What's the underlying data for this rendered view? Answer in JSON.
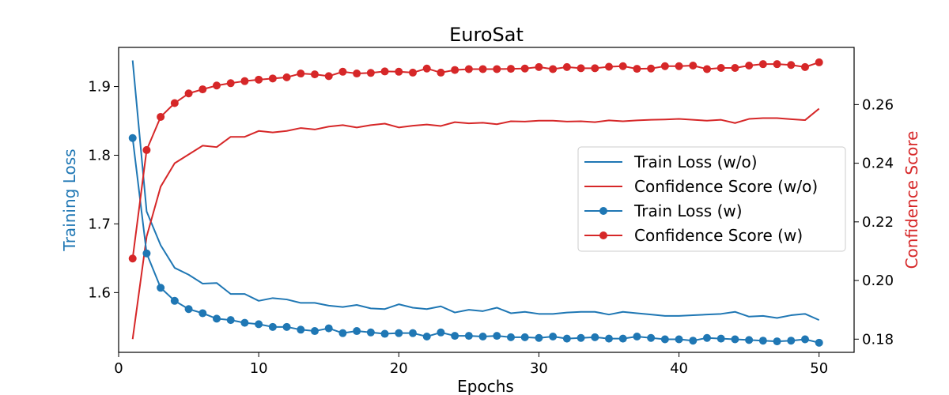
{
  "chart_data": {
    "type": "line",
    "title": "EuroSat",
    "xlabel": "Epochs",
    "ylabel_left": "Training Loss",
    "ylabel_right": "Confidence Score",
    "xlim": [
      0,
      52.5
    ],
    "ylim_left": [
      1.513,
      1.957
    ],
    "ylim_right": [
      0.1755,
      0.2795
    ],
    "x_ticks": [
      0,
      10,
      20,
      30,
      40,
      50
    ],
    "y_ticks_left": [
      1.6,
      1.7,
      1.8,
      1.9
    ],
    "y_ticks_right": [
      0.18,
      0.2,
      0.22,
      0.24,
      0.26
    ],
    "y_tick_labels_left": [
      "1.6",
      "1.7",
      "1.8",
      "1.9"
    ],
    "y_tick_labels_right": [
      "0.18",
      "0.20",
      "0.22",
      "0.24",
      "0.26"
    ],
    "colors": {
      "loss": "#1f77b4",
      "confidence": "#d62728"
    },
    "legend_position": "center-right",
    "x": [
      1,
      2,
      3,
      4,
      5,
      6,
      7,
      8,
      9,
      10,
      11,
      12,
      13,
      14,
      15,
      16,
      17,
      18,
      19,
      20,
      21,
      22,
      23,
      24,
      25,
      26,
      27,
      28,
      29,
      30,
      31,
      32,
      33,
      34,
      35,
      36,
      37,
      38,
      39,
      40,
      41,
      42,
      43,
      44,
      45,
      46,
      47,
      48,
      49,
      50
    ],
    "series": [
      {
        "name": "Train Loss (w/o)",
        "axis": "left",
        "color": "#1f77b4",
        "marker": false,
        "values": [
          1.938,
          1.718,
          1.669,
          1.636,
          1.626,
          1.613,
          1.614,
          1.598,
          1.598,
          1.588,
          1.592,
          1.59,
          1.585,
          1.585,
          1.581,
          1.579,
          1.582,
          1.577,
          1.576,
          1.583,
          1.578,
          1.576,
          1.58,
          1.571,
          1.575,
          1.573,
          1.578,
          1.57,
          1.572,
          1.569,
          1.569,
          1.571,
          1.572,
          1.572,
          1.568,
          1.572,
          1.57,
          1.568,
          1.566,
          1.566,
          1.567,
          1.568,
          1.569,
          1.572,
          1.565,
          1.566,
          1.563,
          1.567,
          1.569,
          1.56
        ]
      },
      {
        "name": "Confidence Score (w/o)",
        "axis": "right",
        "color": "#d62728",
        "marker": false,
        "values": [
          0.18,
          0.215,
          0.232,
          0.24,
          0.243,
          0.246,
          0.2455,
          0.249,
          0.249,
          0.251,
          0.2505,
          0.251,
          0.252,
          0.2515,
          0.2525,
          0.253,
          0.2522,
          0.253,
          0.2535,
          0.2522,
          0.2528,
          0.2532,
          0.2527,
          0.254,
          0.2536,
          0.2538,
          0.2533,
          0.2543,
          0.2542,
          0.2545,
          0.2545,
          0.2542,
          0.2543,
          0.254,
          0.2546,
          0.2543,
          0.2546,
          0.2548,
          0.2549,
          0.2551,
          0.2548,
          0.2545,
          0.2548,
          0.2537,
          0.2551,
          0.2554,
          0.2554,
          0.255,
          0.2547,
          0.2586
        ]
      },
      {
        "name": "Train Loss (w)",
        "axis": "left",
        "color": "#1f77b4",
        "marker": true,
        "values": [
          1.825,
          1.657,
          1.607,
          1.588,
          1.576,
          1.57,
          1.562,
          1.56,
          1.556,
          1.554,
          1.55,
          1.55,
          1.546,
          1.544,
          1.548,
          1.541,
          1.544,
          1.542,
          1.54,
          1.541,
          1.541,
          1.536,
          1.542,
          1.537,
          1.537,
          1.536,
          1.537,
          1.535,
          1.535,
          1.534,
          1.536,
          1.533,
          1.534,
          1.535,
          1.533,
          1.533,
          1.536,
          1.534,
          1.532,
          1.532,
          1.53,
          1.534,
          1.533,
          1.532,
          1.531,
          1.53,
          1.529,
          1.53,
          1.532,
          1.527
        ]
      },
      {
        "name": "Confidence Score (w)",
        "axis": "right",
        "color": "#d62728",
        "marker": true,
        "values": [
          0.2075,
          0.2445,
          0.2558,
          0.2605,
          0.2638,
          0.2652,
          0.2665,
          0.2673,
          0.268,
          0.2685,
          0.2689,
          0.2693,
          0.2706,
          0.2703,
          0.2697,
          0.2712,
          0.2706,
          0.2708,
          0.2713,
          0.2712,
          0.2709,
          0.2723,
          0.2709,
          0.2718,
          0.2721,
          0.2721,
          0.2721,
          0.2722,
          0.2723,
          0.2728,
          0.2721,
          0.2728,
          0.2724,
          0.2724,
          0.2729,
          0.2731,
          0.2722,
          0.2723,
          0.2731,
          0.2731,
          0.2733,
          0.2721,
          0.2725,
          0.2725,
          0.2733,
          0.2738,
          0.2738,
          0.2735,
          0.2728,
          0.2744
        ]
      }
    ]
  }
}
